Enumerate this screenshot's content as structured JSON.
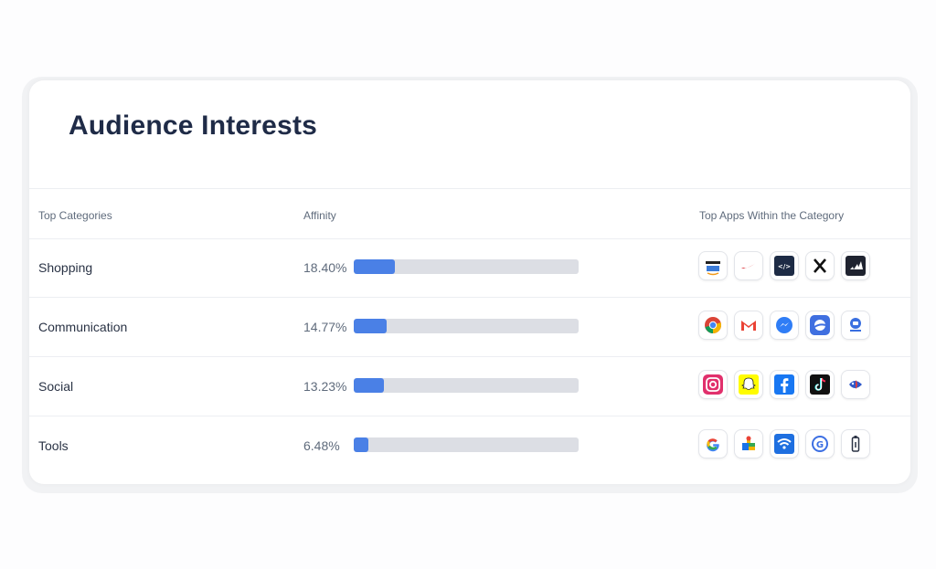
{
  "title": "Audience Interests",
  "columns": {
    "categories": "Top Categories",
    "affinity": "Affinity",
    "apps": "Top Apps Within the Category"
  },
  "accent_color": "#4a80e6",
  "rows": [
    {
      "category": "Shopping",
      "affinity": "18.40%",
      "affinity_value": 18.4,
      "apps": [
        "amazon-shopping-icon",
        "nike-icon",
        "farfetch-icon",
        "x-icon",
        "adidas-icon"
      ]
    },
    {
      "category": "Communication",
      "affinity": "14.77%",
      "affinity_value": 14.77,
      "apps": [
        "chrome-icon",
        "gmail-icon",
        "messenger-icon",
        "samsung-internet-icon",
        "google-duo-icon"
      ]
    },
    {
      "category": "Social",
      "affinity": "13.23%",
      "affinity_value": 13.23,
      "apps": [
        "instagram-icon",
        "snapchat-icon",
        "facebook-icon",
        "tiktok-icon",
        "fish-game-icon"
      ]
    },
    {
      "category": "Tools",
      "affinity": "6.48%",
      "affinity_value": 6.48,
      "apps": [
        "google-icon",
        "puzzle-icon",
        "wifi-shield-icon",
        "google-g-circle-icon",
        "usb-icon"
      ]
    }
  ]
}
